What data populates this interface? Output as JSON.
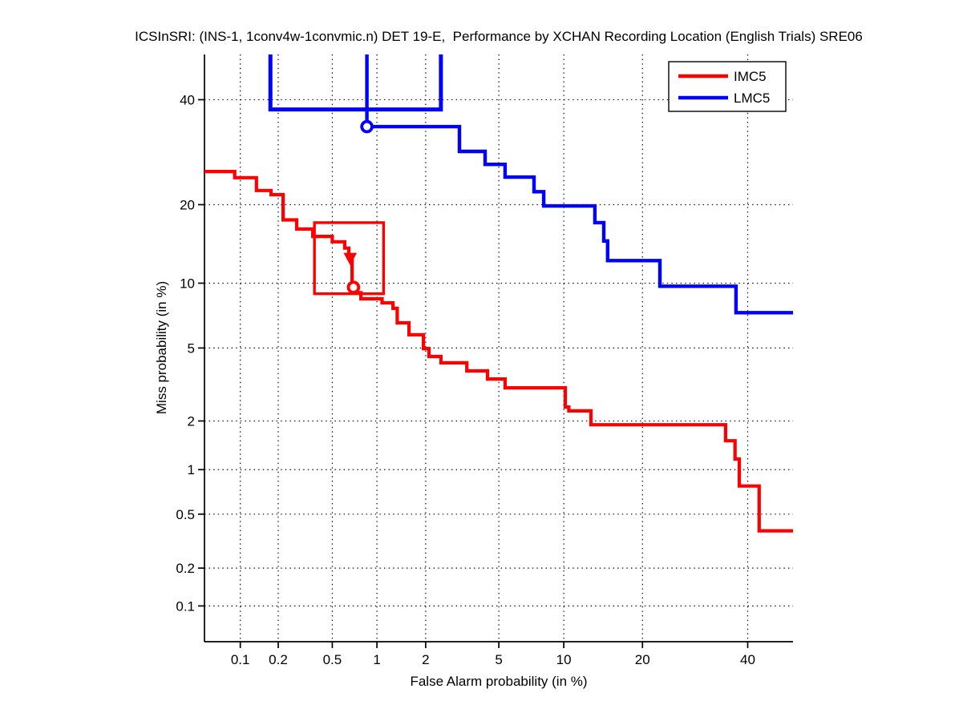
{
  "title": "ICSInSRI: (INS-1, 1conv4w-1convmic.n) DET 19-E,  Performance by XCHAN Recording Location (English Trials) SRE06",
  "axes": {
    "xlabel": "False Alarm probability (in %)",
    "ylabel": "Miss probability (in %)",
    "scale": "probit (normal deviate)",
    "xlim_pct": [
      0.05,
      50
    ],
    "ylim_pct": [
      0.05,
      50
    ],
    "tick_values_pct": [
      0.1,
      0.2,
      0.5,
      1,
      2,
      5,
      10,
      20,
      40
    ],
    "tick_labels": [
      "0.1",
      "0.2",
      "0.5",
      "1",
      "2",
      "5",
      "10",
      "20",
      "40"
    ],
    "grid": "dotted"
  },
  "legend": {
    "position": "top-right",
    "entries": [
      {
        "label": "IMC5",
        "color": "#ff0000"
      },
      {
        "label": "LMC5",
        "color": "#0000ff"
      }
    ]
  },
  "chart_data": {
    "type": "line",
    "subtype": "DET-curve staircase",
    "title": "ICSInSRI: (INS-1, 1conv4w-1convmic.n) DET 19-E,  Performance by XCHAN Recording Location (English Trials) SRE06",
    "xlabel": "False Alarm probability (in %)",
    "ylabel": "Miss probability (in %)",
    "x_units": "percent, probit scale",
    "y_units": "percent, probit scale",
    "series": [
      {
        "name": "IMC5",
        "color": "#ff0000",
        "stroke_width": 4.2,
        "points": [
          [
            0.05,
            25.6
          ],
          [
            0.09,
            25.6
          ],
          [
            0.09,
            24.5
          ],
          [
            0.135,
            24.5
          ],
          [
            0.135,
            22.3
          ],
          [
            0.176,
            22.3
          ],
          [
            0.176,
            21.6
          ],
          [
            0.218,
            21.6
          ],
          [
            0.218,
            17.7
          ],
          [
            0.276,
            17.7
          ],
          [
            0.276,
            16.4
          ],
          [
            0.363,
            16.4
          ],
          [
            0.363,
            15.4
          ],
          [
            0.5,
            15.4
          ],
          [
            0.5,
            14.7
          ],
          [
            0.61,
            14.7
          ],
          [
            0.61,
            13.9
          ],
          [
            0.65,
            13.9
          ],
          [
            0.65,
            12.7
          ],
          [
            0.685,
            12.7
          ],
          [
            0.685,
            9.6
          ],
          [
            0.72,
            9.6
          ],
          [
            0.72,
            9.1
          ],
          [
            0.785,
            9.1
          ],
          [
            0.785,
            8.55
          ],
          [
            1.08,
            8.55
          ],
          [
            1.08,
            8.2
          ],
          [
            1.265,
            8.2
          ],
          [
            1.265,
            7.74
          ],
          [
            1.345,
            7.74
          ],
          [
            1.345,
            6.63
          ],
          [
            1.59,
            6.63
          ],
          [
            1.59,
            5.81
          ],
          [
            1.94,
            5.81
          ],
          [
            1.94,
            4.97
          ],
          [
            2.09,
            4.97
          ],
          [
            2.09,
            4.53
          ],
          [
            2.45,
            4.53
          ],
          [
            2.45,
            4.2
          ],
          [
            3.41,
            4.2
          ],
          [
            3.41,
            3.81
          ],
          [
            4.38,
            3.81
          ],
          [
            4.38,
            3.45
          ],
          [
            5.37,
            3.45
          ],
          [
            5.37,
            3.09
          ],
          [
            10.15,
            3.09
          ],
          [
            10.15,
            2.41
          ],
          [
            10.5,
            2.41
          ],
          [
            10.5,
            2.29
          ],
          [
            12.93,
            2.29
          ],
          [
            12.93,
            1.9
          ],
          [
            35.3,
            1.9
          ],
          [
            35.3,
            1.52
          ],
          [
            37.3,
            1.52
          ],
          [
            37.3,
            1.17
          ],
          [
            38.2,
            1.17
          ],
          [
            38.2,
            0.78
          ],
          [
            42.5,
            0.78
          ],
          [
            42.5,
            0.38
          ],
          [
            50,
            0.38
          ]
        ]
      },
      {
        "name": "LMC5",
        "color": "#0000ff",
        "stroke_width": 4.4,
        "points": [
          [
            0.86,
            60
          ],
          [
            0.86,
            34.3
          ],
          [
            3.11,
            34.3
          ],
          [
            3.11,
            29.35
          ],
          [
            4.26,
            29.35
          ],
          [
            4.26,
            26.9
          ],
          [
            5.37,
            26.9
          ],
          [
            5.37,
            24.6
          ],
          [
            7.38,
            24.6
          ],
          [
            7.38,
            22.1
          ],
          [
            8.17,
            22.1
          ],
          [
            8.17,
            19.8
          ],
          [
            13.4,
            19.8
          ],
          [
            13.4,
            17.3
          ],
          [
            14.5,
            17.3
          ],
          [
            14.5,
            14.8
          ],
          [
            15.0,
            14.8
          ],
          [
            15.0,
            12.4
          ],
          [
            22.84,
            12.4
          ],
          [
            22.84,
            9.7
          ],
          [
            37.5,
            9.7
          ],
          [
            37.5,
            7.4
          ],
          [
            50,
            7.4
          ]
        ]
      }
    ],
    "annotations": {
      "operating_point_boxes": [
        {
          "series": "IMC5",
          "color": "#ff0000",
          "fa_range_pct": [
            0.373,
            1.104
          ],
          "miss_range_pct": [
            9.0,
            17.3
          ],
          "stroke_width": 3.4
        },
        {
          "series": "LMC5",
          "color": "#0000ff",
          "fa_range_pct": [
            0.174,
            2.45
          ],
          "miss_range_pct": [
            37.9,
            75
          ],
          "stroke_width": 5,
          "note": "top edge clipped at axis limit"
        }
      ],
      "markers": [
        {
          "series": "IMC5",
          "shape": "triangle-down-filled",
          "color": "#ff0000",
          "fa_pct": 0.665,
          "miss_pct": 12.7
        },
        {
          "series": "IMC5",
          "shape": "circle-open",
          "color": "#ff0000",
          "fa_pct": 0.7,
          "miss_pct": 9.6
        },
        {
          "series": "LMC5",
          "shape": "circle-open",
          "color": "#0000ff",
          "fa_pct": 0.86,
          "miss_pct": 34.3
        }
      ]
    },
    "axis_ranges_pct": {
      "x": [
        0.05,
        50
      ],
      "y": [
        0.05,
        50
      ]
    },
    "legend_entries": [
      "IMC5",
      "LMC5"
    ],
    "legend_position": "top-right",
    "grid_on": true
  },
  "colors": {
    "imc5": "#ff0000",
    "lmc5": "#0000ff",
    "axis": "#000000",
    "grid": "#000000",
    "background": "#ffffff"
  }
}
